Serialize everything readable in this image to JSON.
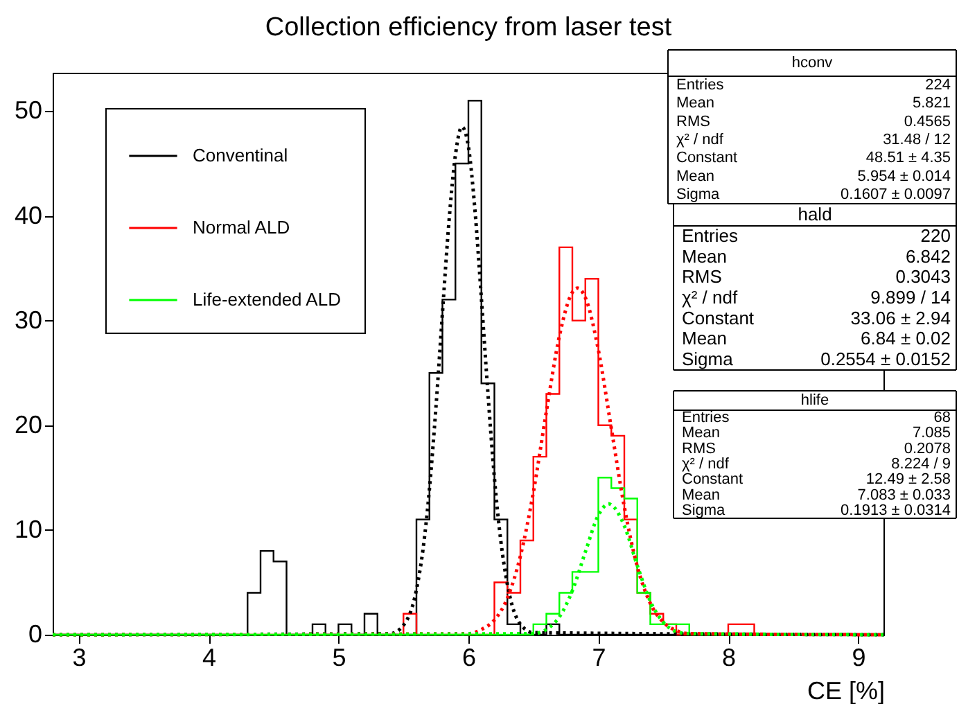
{
  "chart_data": {
    "type": "histogram",
    "title": "Collection efficiency from laser test",
    "xlabel": "CE [%]",
    "xlim": [
      2.8,
      9.2
    ],
    "ylim": [
      0,
      53.6
    ],
    "xticks": [
      3,
      4,
      5,
      6,
      7,
      8,
      9
    ],
    "yticks": [
      0,
      10,
      20,
      30,
      40,
      50
    ],
    "legend": "top left",
    "bins": [
      2.8,
      2.9,
      3.0,
      3.1,
      3.2,
      3.3,
      3.4,
      3.5,
      3.6,
      3.7,
      3.8,
      3.9,
      4.0,
      4.1,
      4.2,
      4.3,
      4.4,
      4.5,
      4.6,
      4.7,
      4.8,
      4.9,
      5.0,
      5.1,
      5.2,
      5.3,
      5.4,
      5.5,
      5.6,
      5.7,
      5.8,
      5.9,
      6.0,
      6.1,
      6.2,
      6.3,
      6.4,
      6.5,
      6.6,
      6.7,
      6.8,
      6.9,
      7.0,
      7.1,
      7.2,
      7.3,
      7.4,
      7.5,
      7.6,
      7.7,
      7.8,
      7.9,
      8.0,
      8.1,
      8.2,
      8.3,
      8.4,
      8.5,
      8.6,
      8.7,
      8.8,
      8.9,
      9.0,
      9.1,
      9.2
    ],
    "series": [
      {
        "type": "histogram",
        "name": "Conventinal",
        "color": "#000000",
        "values": [
          0,
          0,
          0,
          0,
          0,
          0,
          0,
          0,
          0,
          0,
          0,
          0,
          0,
          0,
          0,
          4,
          8,
          7,
          0,
          0,
          1,
          0,
          1,
          0,
          2,
          0,
          0,
          0,
          11,
          25,
          32,
          45,
          51,
          24,
          11,
          1,
          0,
          0,
          1,
          0,
          0,
          0,
          0,
          0,
          0,
          0,
          0,
          0,
          0,
          0,
          0,
          0,
          0,
          0,
          0,
          0,
          0,
          0,
          0,
          0,
          0,
          0,
          0,
          0
        ]
      },
      {
        "type": "histogram",
        "name": "Normal ALD",
        "color": "#ff0000",
        "values": [
          0,
          0,
          0,
          0,
          0,
          0,
          0,
          0,
          0,
          0,
          0,
          0,
          0,
          0,
          0,
          0,
          0,
          0,
          0,
          0,
          0,
          0,
          0,
          0,
          0,
          0,
          0,
          2,
          0,
          0,
          0,
          0,
          0,
          0,
          5,
          4,
          9,
          17,
          23,
          37,
          30,
          34,
          20,
          19,
          11,
          4,
          2,
          1,
          0,
          0,
          0,
          0,
          1,
          1,
          0,
          0,
          0,
          0,
          0,
          0,
          0,
          0,
          0,
          0
        ]
      },
      {
        "type": "histogram",
        "name": "Life-extended ALD",
        "color": "#00ff00",
        "values": [
          0,
          0,
          0,
          0,
          0,
          0,
          0,
          0,
          0,
          0,
          0,
          0,
          0,
          0,
          0,
          0,
          0,
          0,
          0,
          0,
          0,
          0,
          0,
          0,
          0,
          0,
          0,
          0,
          0,
          0,
          0,
          0,
          0,
          0,
          0,
          0,
          0,
          1,
          2,
          4,
          6,
          6,
          15,
          14,
          13,
          4,
          1,
          1,
          1,
          0,
          0,
          0,
          0,
          0,
          0,
          0,
          0,
          0,
          0,
          0,
          0,
          0,
          0,
          0
        ]
      },
      {
        "type": "line",
        "line_style": "dotted",
        "color": "#000000",
        "x": [
          2.8,
          5.4,
          5.5,
          5.6,
          5.65,
          5.7,
          5.75,
          5.8,
          5.85,
          5.9,
          5.95,
          6.0,
          6.05,
          6.1,
          6.15,
          6.2,
          6.25,
          6.3,
          6.4,
          6.5,
          9.2
        ],
        "values": [
          0,
          0.1,
          0.9,
          4.3,
          8.1,
          13.9,
          21.7,
          30.7,
          39.4,
          45.8,
          48.5,
          46.6,
          40.6,
          32.1,
          23.1,
          15.0,
          8.9,
          4.8,
          1.0,
          0.2,
          0
        ]
      },
      {
        "type": "line",
        "line_style": "dotted",
        "color": "#fe0101",
        "x": [
          2.8,
          6.0,
          6.1,
          6.2,
          6.3,
          6.4,
          6.5,
          6.6,
          6.7,
          6.8,
          6.84,
          6.9,
          7.0,
          7.1,
          7.2,
          7.3,
          7.4,
          7.5,
          7.6,
          7.7,
          9.2
        ],
        "values": [
          0,
          0.1,
          0.5,
          1.4,
          3.5,
          7.5,
          13.6,
          21.3,
          28.5,
          32.7,
          33.1,
          32.2,
          27.2,
          19.7,
          12.2,
          6.5,
          3.0,
          1.2,
          0.4,
          0.1,
          0
        ]
      },
      {
        "type": "line",
        "line_style": "dotted",
        "color": "#01fe01",
        "x": [
          2.8,
          6.5,
          6.6,
          6.7,
          6.8,
          6.9,
          7.0,
          7.08,
          7.1,
          7.2,
          7.3,
          7.4,
          7.5,
          7.6,
          7.7,
          9.2
        ],
        "values": [
          0,
          0.1,
          0.5,
          1.7,
          4.2,
          7.9,
          11.4,
          12.5,
          12.4,
          10.4,
          6.6,
          3.2,
          1.2,
          0.3,
          0.1,
          0
        ]
      }
    ],
    "annotations": [
      "hconv",
      "Entries\t224",
      "Mean\t5.821",
      "RMS\t0.4565",
      "χ² / ndf\t31.48 / 12",
      "Constant\t48.51 ± 4.35",
      "Mean\t5.954 ± 0.014",
      "Sigma\t0.1607 ± 0.0097",
      "hald",
      "Entries\t220",
      "Mean\t6.842",
      "RMS\t0.3043",
      "χ² / ndf\t9.899 / 14",
      "Constant\t33.06 ± 2.94",
      "Mean\t6.84 ± 0.02",
      "Sigma\t0.2554 ± 0.0152",
      "hlife",
      "Entries\t68",
      "Mean\t7.085",
      "RMS\t0.2078",
      "χ² / ndf\t8.224 / 9",
      "Constant\t12.49 ± 2.58",
      "Mean\t7.083 ± 0.033",
      "Sigma\t0.1913 ± 0.0314"
    ]
  }
}
